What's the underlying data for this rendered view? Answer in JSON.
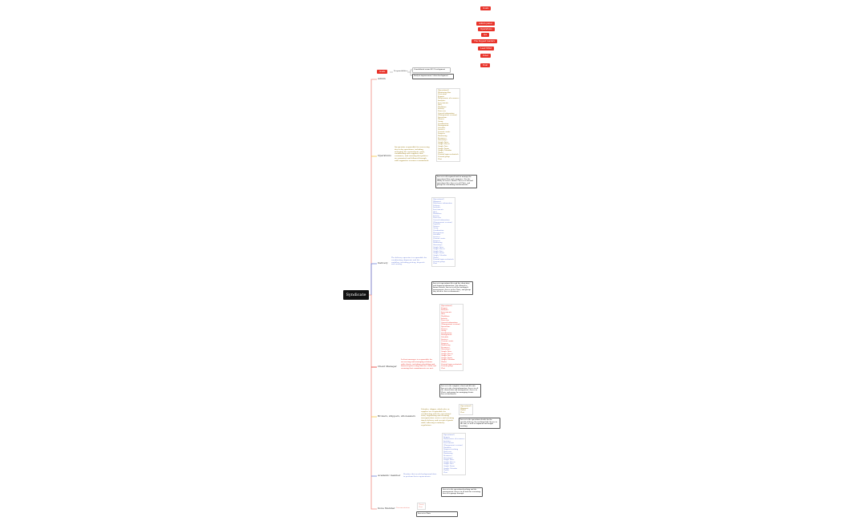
{
  "root": {
    "label": "Syndicate"
  },
  "colors": {
    "red": "#e8332a",
    "yellow": "#f5c542",
    "blue": "#6b7fd7",
    "pink": "#f08a80"
  },
  "top_tags": [
    "Goals",
    "Admin panel",
    "Operations",
    "QA",
    "The biggest leaders",
    "Lead Mind",
    "Inner",
    "Dual"
  ],
  "goals": {
    "label": "Goals",
    "relation": "Responsibilities",
    "items": [
      "Consolidated vision OK / Development",
      "Analysis improvement / data development"
    ]
  },
  "branches": [
    {
      "label": "Admin",
      "color": "#f08a80",
      "desc": "",
      "list": [],
      "note": ""
    },
    {
      "label": "Operations",
      "color": "#f5c542",
      "desc": "An operator responsible for overseeing day to day operations, including managing the environment, goals, coordinating with suppliers and customers, and ensuring that policies are promoted and followed through, with supportive resources maintained.",
      "list": [
        "[Operational]",
        "Monitoring flow",
        "Costs data",
        "Reports",
        "Maintenance of resources",
        "Analytics",
        "Assessments",
        "[Art]",
        "Workflows",
        "Activity",
        "Processes",
        "General information",
        "[Management sessions]",
        "Operations",
        "Finance",
        "Group",
        "Coordination",
        "Management",
        "Schedule",
        "Services",
        "Current events",
        "Progress",
        "Monitoring",
        "Resources",
        "[Inventory]",
        "Google Drive",
        "Google Sheets",
        "Google Docs",
        "Google Forms",
        "Google Calendar",
        "[Tools]",
        "Current login credentials",
        "Current group",
        "Chat"
      ],
      "note": "Access to all required tools to manage the operational flow and companies. Has the ability to oversee finance. Access to internal operations files. Access to all Chats, and groups for scheduling and documents."
    },
    {
      "label": "Delivery",
      "color": "#6b7fd7",
      "desc": "The delivery operator is responsible for coordinating shipments and the workflow, including pick-up, dispatch and routing.",
      "list": [
        "[Operational]",
        "Shipment",
        "Warehouse information",
        "Delivery",
        "Analytics",
        "Assessments",
        "[Art]",
        "Workflows",
        "Activity",
        "Processes",
        "General information",
        "[Management sessions]",
        "Logistics",
        "Finance",
        "Group",
        "Coordination",
        "Management",
        "Schedule",
        "Services",
        "Current events",
        "Progress",
        "Monitoring",
        "[Inventory]",
        "Google Drive",
        "Google Sheets",
        "Google Docs",
        "Google Forms",
        "Google Calendar",
        "[Tools]",
        "Current login credentials",
        "Current group",
        "Chat"
      ],
      "note": "Access to operations files and the client data and shipment information. Not allowed to finance details. Access to all the tracking & management. Access to the Chats, and groups they need to. Access documents."
    },
    {
      "label": "Client Manager",
      "color": "#e8332a",
      "desc": "A client manager is responsible for overseeing and managing relations with clients, including scheduling and financial processing with the client and ensuring that commitments are met.",
      "list": [
        "[Operational]",
        "Reports",
        "Analytics",
        "Assessments",
        "[Art]",
        "Workflows",
        "Activity",
        "Processes",
        "General information",
        "[Management sessions]",
        "Operations",
        "Finance",
        "Group",
        "Coordination",
        "Management",
        "Schedule",
        "Services",
        "Current events",
        "Progress",
        "Monitoring",
        "Resources",
        "[Inventory]",
        "Google Drive",
        "Google Sheets",
        "Google Docs",
        "Google Forms",
        "Google Calendar",
        "[Tools]",
        "Current login credentials",
        "Current group",
        "Chat"
      ],
      "note": "Access to the complete client and file info. Access to the client information. Access to all the shared data and management. Access to Chats, and groups for managing clients. Access documents."
    },
    {
      "label": "Brokers, shippers, wholesalers",
      "color": "#f5c542",
      "desc": "A broker, shipper, wholesaler or supplier are responsible for coordinating with the operational team, negotiating and ensuring transportation services and ensuring timely delivery and receipt of goods while adhering to industry regulations.",
      "list": [
        "[Operational]",
        "Shipment",
        "[Tools]",
        "Chat"
      ],
      "note": "Access to the operations details for the specific delivery, the tracking field. Access to the tool, as well as shipment and freight tracking."
    },
    {
      "label": "Academic member",
      "color": "#6b7fd7",
      "desc": "Member that needs background data to perform their requirements.",
      "list": [
        "[Operational]",
        "Reports",
        "Maintenance of resources",
        "Analytics",
        "Assessments",
        "[Management sessions]",
        "Workflow",
        "Progress tracking",
        "Processes",
        "Monitoring",
        "Resources",
        "[Inventory]",
        "Google Drive",
        "Google Sheets",
        "Google Docs",
        "Google Forms",
        "Google Calendar",
        "[Tools]",
        "Chat"
      ],
      "note": "Access to the operations/tracking and the management. Access to all tools for reviewing. Access to groups through."
    },
    {
      "label": "Done Member",
      "color": "#f08a80",
      "desc": "Documentation",
      "list": [
        "[Tools]",
        "Chat"
      ],
      "note": "Access to Chats"
    }
  ]
}
